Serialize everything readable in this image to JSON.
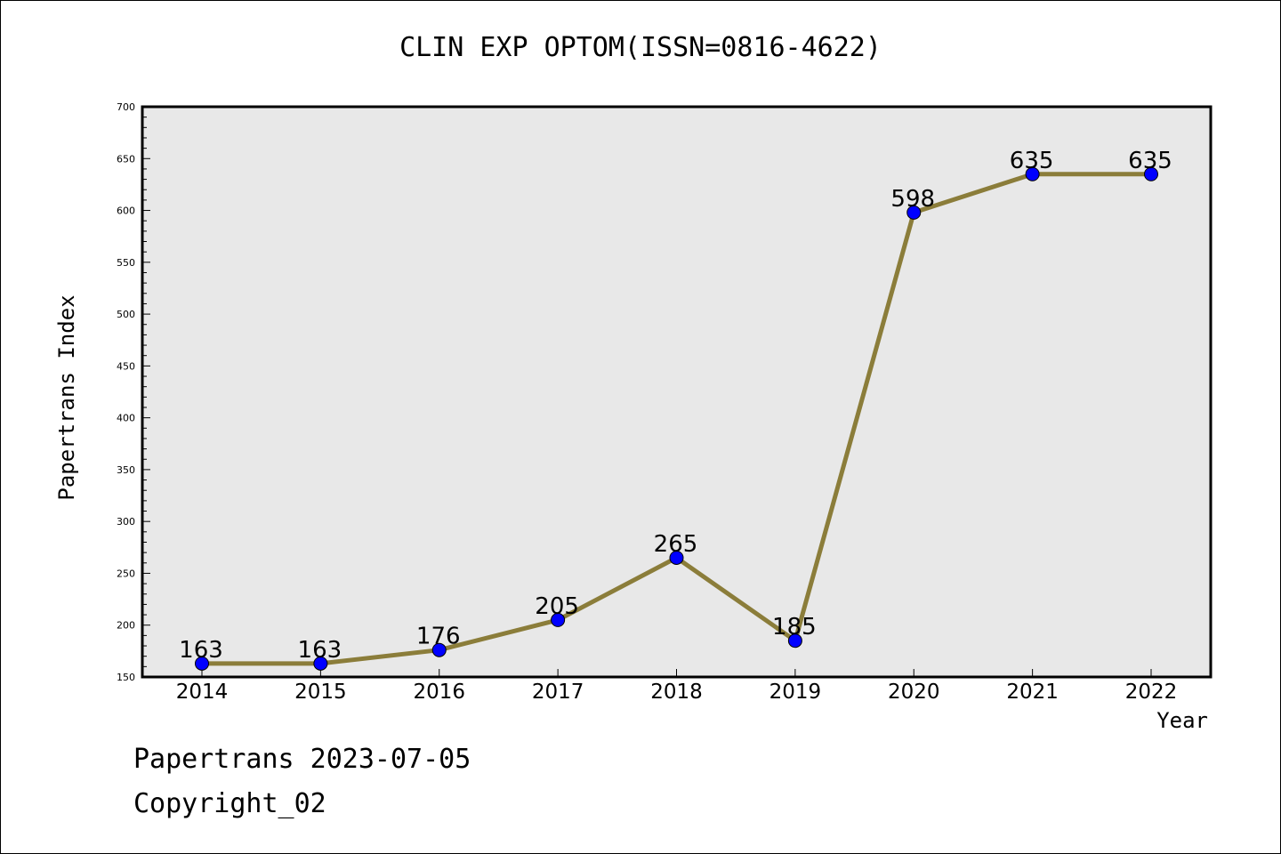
{
  "chart_data": {
    "type": "line",
    "title": "CLIN EXP OPTOM(ISSN=0816-4622)",
    "xlabel": "Year",
    "ylabel": "Papertrans Index",
    "x": [
      "2014",
      "2015",
      "2016",
      "2017",
      "2018",
      "2019",
      "2020",
      "2021",
      "2022"
    ],
    "series": [
      {
        "values": [
          163,
          163,
          176,
          205,
          265,
          185,
          598,
          635,
          635
        ]
      }
    ],
    "ylim": [
      150,
      700
    ],
    "yticks": [
      150,
      200,
      250,
      300,
      350,
      400,
      450,
      500,
      550,
      600,
      650,
      700
    ],
    "grid": false,
    "data_labels": true,
    "colors": {
      "line": "#8b7d3a",
      "marker": "#0000ff",
      "plot_background": "#e8e8e8"
    }
  },
  "footer": {
    "date_line": "Papertrans 2023-07-05",
    "copyright": "Copyright_02"
  }
}
